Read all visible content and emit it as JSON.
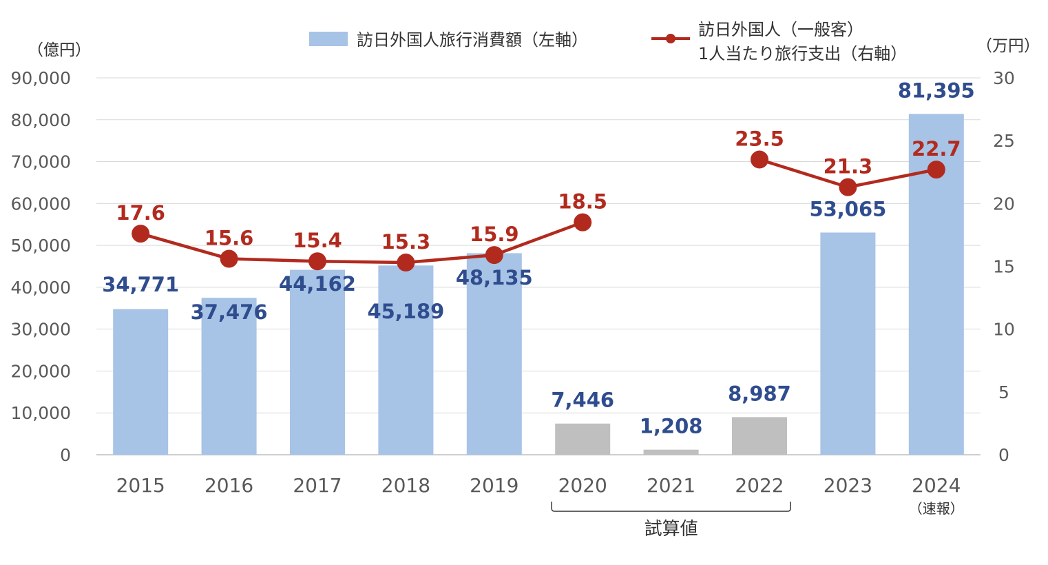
{
  "chart_data": {
    "type": "bar+line",
    "categories": [
      "2015",
      "2016",
      "2017",
      "2018",
      "2019",
      "2020",
      "2021",
      "2022",
      "2023",
      "2024"
    ],
    "category_note": {
      "2024": "（速報）"
    },
    "series": [
      {
        "name": "訪日外国人旅行消費額（左軸）",
        "type": "bar",
        "axis": "left",
        "values": [
          34771,
          37476,
          44162,
          45189,
          48135,
          7446,
          1208,
          8987,
          53065,
          81395
        ],
        "labels": [
          "34,771",
          "37,476",
          "44,162",
          "45,189",
          "48,135",
          "7,446",
          "1,208",
          "8,987",
          "53,065",
          "81,395"
        ],
        "estimated": [
          false,
          false,
          false,
          false,
          false,
          true,
          true,
          true,
          false,
          false
        ]
      },
      {
        "name_line1": "訪日外国人（一般客）",
        "name_line2": "1人当たり旅行支出（右軸）",
        "type": "line",
        "axis": "right",
        "values": [
          17.6,
          15.6,
          15.4,
          15.3,
          15.9,
          18.5,
          null,
          23.5,
          21.3,
          22.7
        ],
        "labels": [
          "17.6",
          "15.6",
          "15.4",
          "15.3",
          "15.9",
          "18.5",
          "",
          "23.5",
          "21.3",
          "22.7"
        ]
      }
    ],
    "left_axis": {
      "unit": "（億円）",
      "ylim": [
        0,
        90000
      ],
      "ticks": [
        "0",
        "10,000",
        "20,000",
        "30,000",
        "40,000",
        "50,000",
        "60,000",
        "70,000",
        "80,000",
        "90,000"
      ],
      "tick_values": [
        0,
        10000,
        20000,
        30000,
        40000,
        50000,
        60000,
        70000,
        80000,
        90000
      ]
    },
    "right_axis": {
      "unit": "（万円）",
      "ylim": [
        0,
        30
      ],
      "ticks": [
        "0",
        "5",
        "10",
        "15",
        "20",
        "25",
        "30"
      ],
      "tick_values": [
        0,
        5,
        10,
        15,
        20,
        25,
        30
      ]
    },
    "bracket": {
      "label": "試算値",
      "from": "2020",
      "to": "2022"
    },
    "grid": true,
    "legend_position": "top",
    "colors": {
      "bar": "#A7C3E6",
      "bar_estimated": "#BFBFBF",
      "line": "#B22A1E",
      "bar_label": "#2F4D8E",
      "line_label": "#B22A1E",
      "grid": "#D9D9D9",
      "axis_text": "#595959"
    }
  }
}
